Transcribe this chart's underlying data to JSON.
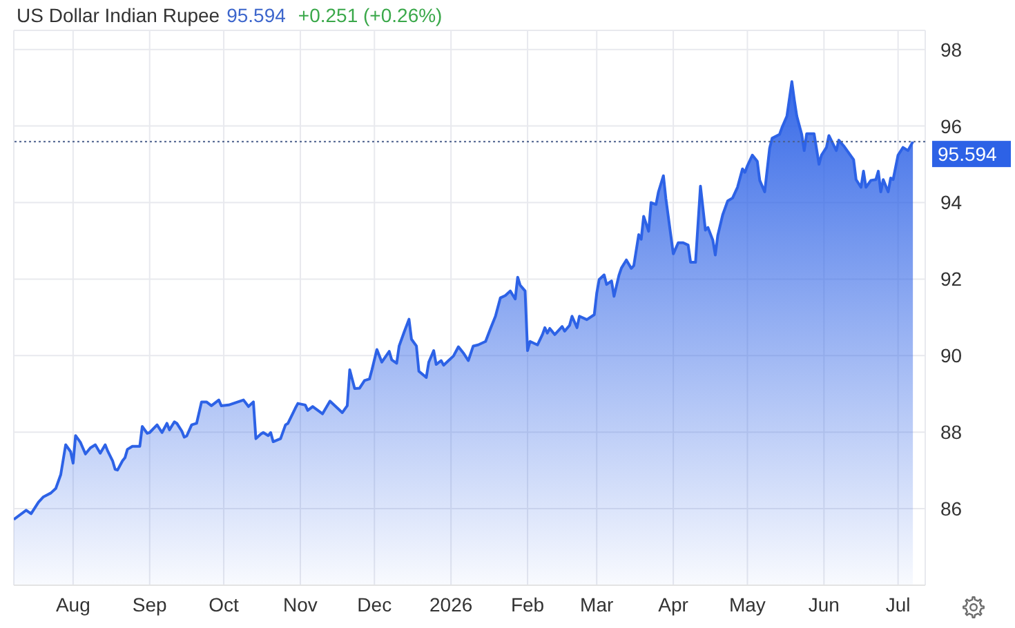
{
  "chart_data": {
    "type": "area",
    "title": "US Dollar Indian Rupee",
    "annotations": [
      "95.594",
      "+0.251 (+0.26%)"
    ],
    "x": [
      "2025-07-08",
      "2025-07-13",
      "2025-07-15",
      "2025-07-18",
      "2025-07-20",
      "2025-07-23",
      "2025-07-25",
      "2025-07-27",
      "2025-07-29",
      "2025-07-31",
      "2025-08-01",
      "2025-08-02",
      "2025-08-04",
      "2025-08-06",
      "2025-08-08",
      "2025-08-10",
      "2025-08-12",
      "2025-08-14",
      "2025-08-15",
      "2025-08-17",
      "2025-08-18",
      "2025-08-19",
      "2025-08-21",
      "2025-08-22",
      "2025-08-23",
      "2025-08-25",
      "2025-08-28",
      "2025-08-29",
      "2025-08-31",
      "2025-09-01",
      "2025-09-04",
      "2025-09-06",
      "2025-09-08",
      "2025-09-09",
      "2025-09-11",
      "2025-09-12",
      "2025-09-14",
      "2025-09-15",
      "2025-09-16",
      "2025-09-18",
      "2025-09-20",
      "2025-09-22",
      "2025-09-24",
      "2025-09-26",
      "2025-09-29",
      "2025-09-30",
      "2025-10-03",
      "2025-10-09",
      "2025-10-11",
      "2025-10-13",
      "2025-10-14",
      "2025-10-16",
      "2025-10-17",
      "2025-10-19",
      "2025-10-20",
      "2025-10-21",
      "2025-10-24",
      "2025-10-26",
      "2025-10-27",
      "2025-10-30",
      "2025-10-31",
      "2025-11-03",
      "2025-11-04",
      "2025-11-06",
      "2025-11-10",
      "2025-11-13",
      "2025-11-16",
      "2025-11-18",
      "2025-11-20",
      "2025-11-21",
      "2025-11-23",
      "2025-11-25",
      "2025-11-27",
      "2025-11-29",
      "2025-11-30",
      "2025-12-02",
      "2025-12-04",
      "2025-12-07",
      "2025-12-08",
      "2025-12-10",
      "2025-12-11",
      "2025-12-13",
      "2025-12-15",
      "2025-12-16",
      "2025-12-18",
      "2025-12-19",
      "2025-12-22",
      "2025-12-23",
      "2025-12-25",
      "2025-12-26",
      "2025-12-28",
      "2025-12-29",
      "2025-12-31",
      "2026-01-02",
      "2026-01-04",
      "2026-01-06",
      "2026-01-08",
      "2026-01-10",
      "2026-01-12",
      "2026-01-15",
      "2026-01-17",
      "2026-01-19",
      "2026-01-21",
      "2026-01-23",
      "2026-01-25",
      "2026-01-27",
      "2026-01-28",
      "2026-01-29",
      "2026-01-31",
      "2026-02-01",
      "2026-02-02",
      "2026-02-05",
      "2026-02-07",
      "2026-02-08",
      "2026-02-09",
      "2026-02-10",
      "2026-02-12",
      "2026-02-15",
      "2026-02-16",
      "2026-02-18",
      "2026-02-19",
      "2026-02-21",
      "2026-02-22",
      "2026-02-25",
      "2026-02-28",
      "2026-03-01",
      "2026-03-02",
      "2026-03-04",
      "2026-03-05",
      "2026-03-07",
      "2026-03-08",
      "2026-03-10",
      "2026-03-11",
      "2026-03-13",
      "2026-03-15",
      "2026-03-16",
      "2026-03-18",
      "2026-03-19",
      "2026-03-20",
      "2026-03-22",
      "2026-03-23",
      "2026-03-25",
      "2026-03-26",
      "2026-03-28",
      "2026-03-29",
      "2026-04-01",
      "2026-04-03",
      "2026-04-05",
      "2026-04-07",
      "2026-04-08",
      "2026-04-10",
      "2026-04-12",
      "2026-04-14",
      "2026-04-15",
      "2026-04-17",
      "2026-04-18",
      "2026-04-19",
      "2026-04-21",
      "2026-04-23",
      "2026-04-25",
      "2026-04-27",
      "2026-04-29",
      "2026-04-30",
      "2026-05-01",
      "2026-05-03",
      "2026-05-05",
      "2026-05-06",
      "2026-05-08",
      "2026-05-10",
      "2026-05-11",
      "2026-05-14",
      "2026-05-15",
      "2026-05-17",
      "2026-05-19",
      "2026-05-20",
      "2026-05-21",
      "2026-05-23",
      "2026-05-24",
      "2026-05-25",
      "2026-05-28",
      "2026-05-30",
      "2026-05-31",
      "2026-06-02",
      "2026-06-03",
      "2026-06-06",
      "2026-06-07",
      "2026-06-09",
      "2026-06-11",
      "2026-06-13",
      "2026-06-14",
      "2026-06-16",
      "2026-06-17",
      "2026-06-18",
      "2026-06-20",
      "2026-06-22",
      "2026-06-23",
      "2026-06-24",
      "2026-06-25",
      "2026-06-27",
      "2026-06-28",
      "2026-06-29",
      "2026-07-01",
      "2026-07-03",
      "2026-07-05",
      "2026-07-07"
    ],
    "values": [
      85.72,
      85.96,
      85.87,
      86.17,
      86.31,
      86.41,
      86.53,
      86.89,
      87.67,
      87.49,
      87.19,
      87.91,
      87.73,
      87.43,
      87.59,
      87.67,
      87.45,
      87.67,
      87.51,
      87.25,
      87.03,
      87.01,
      87.25,
      87.33,
      87.55,
      87.63,
      87.63,
      88.15,
      87.97,
      87.99,
      88.19,
      87.99,
      88.23,
      88.06,
      88.27,
      88.23,
      88.03,
      87.87,
      87.9,
      88.19,
      88.23,
      88.79,
      88.79,
      88.69,
      88.84,
      88.69,
      88.71,
      88.84,
      88.67,
      88.79,
      87.83,
      87.95,
      87.99,
      87.91,
      87.99,
      87.75,
      87.83,
      88.19,
      88.23,
      88.63,
      88.75,
      88.71,
      88.57,
      88.67,
      88.48,
      88.81,
      88.63,
      88.51,
      88.69,
      89.63,
      89.14,
      89.15,
      89.35,
      89.39,
      89.63,
      90.16,
      89.83,
      90.11,
      89.89,
      89.8,
      90.25,
      90.61,
      90.95,
      90.43,
      90.25,
      89.59,
      89.43,
      89.83,
      90.13,
      89.77,
      89.87,
      89.75,
      89.87,
      89.99,
      90.23,
      90.07,
      89.87,
      90.25,
      90.28,
      90.37,
      90.71,
      91.03,
      91.51,
      91.57,
      91.69,
      91.48,
      92.05,
      91.84,
      91.69,
      90.13,
      90.37,
      90.28,
      90.55,
      90.73,
      90.59,
      90.71,
      90.55,
      90.76,
      90.64,
      90.79,
      91.03,
      90.73,
      91.03,
      90.94,
      91.07,
      91.63,
      91.99,
      92.11,
      91.86,
      91.95,
      91.55,
      92.1,
      92.29,
      92.5,
      92.28,
      92.35,
      93.16,
      93.04,
      93.64,
      93.25,
      94.0,
      93.95,
      94.28,
      94.7,
      94.1,
      92.66,
      92.95,
      92.95,
      92.89,
      92.44,
      92.44,
      94.43,
      93.28,
      93.35,
      93.02,
      92.63,
      93.14,
      93.68,
      94.04,
      94.12,
      94.4,
      94.88,
      94.79,
      94.96,
      95.24,
      95.08,
      94.58,
      94.28,
      95.42,
      95.68,
      95.78,
      95.96,
      96.26,
      97.16,
      96.68,
      96.26,
      95.78,
      95.36,
      95.8,
      95.8,
      95.0,
      95.24,
      95.44,
      95.75,
      95.36,
      95.63,
      95.48,
      95.3,
      95.12,
      94.6,
      94.4,
      94.82,
      94.4,
      94.58,
      94.6,
      94.82,
      94.28,
      94.6,
      94.28,
      94.64,
      94.6,
      95.24,
      95.44,
      95.36,
      95.59
    ],
    "color": "#2d62e6",
    "xlim": [
      "2025-07-08",
      "2026-07-12"
    ],
    "xticks": [
      {
        "value": "2025-08-01",
        "label": "Aug"
      },
      {
        "value": "2025-09-01",
        "label": "Sep"
      },
      {
        "value": "2025-10-01",
        "label": "Oct"
      },
      {
        "value": "2025-11-01",
        "label": "Nov"
      },
      {
        "value": "2025-12-01",
        "label": "Dec"
      },
      {
        "value": "2026-01-01",
        "label": "2026"
      },
      {
        "value": "2026-02-01",
        "label": "Feb"
      },
      {
        "value": "2026-03-01",
        "label": "Mar"
      },
      {
        "value": "2026-04-01",
        "label": "Apr"
      },
      {
        "value": "2026-05-01",
        "label": "May"
      },
      {
        "value": "2026-06-01",
        "label": "Jun"
      },
      {
        "value": "2026-07-01",
        "label": "Jul"
      }
    ],
    "ylim": [
      84,
      98.5
    ],
    "yticks": [
      86,
      88,
      90,
      92,
      94,
      96,
      98
    ],
    "grid": true,
    "ref_lines": [
      {
        "axis": "y",
        "value": 95.594,
        "label": "95.594",
        "color": "#4a5f8c",
        "line_style": "dotted"
      }
    ]
  }
}
